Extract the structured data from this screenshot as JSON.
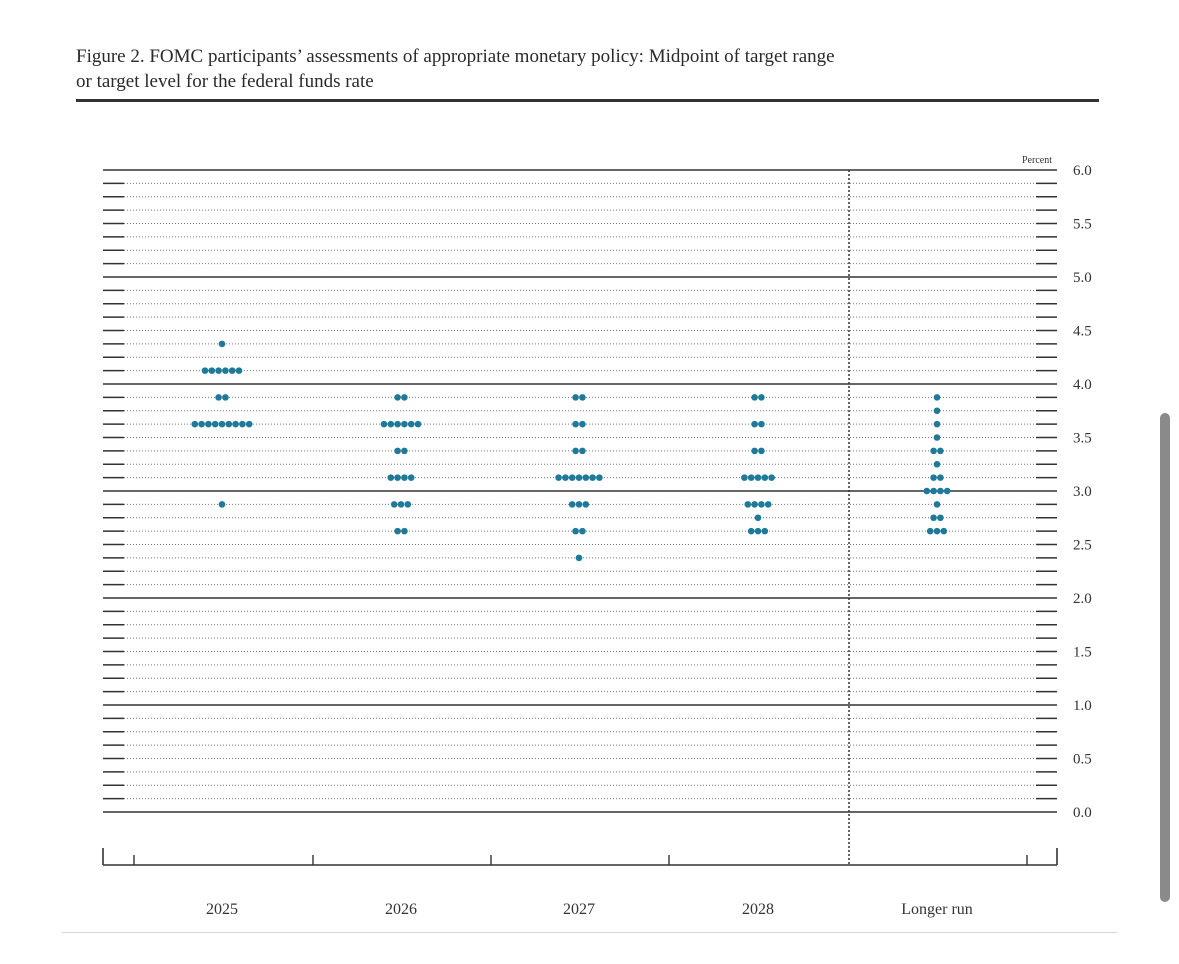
{
  "figure": {
    "title_line1": "Figure 2. FOMC participants’ assessments of appropriate monetary policy: Midpoint of target range",
    "title_line2": "or target level for the federal funds rate"
  },
  "chart_data": {
    "type": "scatter",
    "subtype": "dot plot",
    "unit_label": "Percent",
    "categories": [
      "2025",
      "2026",
      "2027",
      "2028",
      "Longer run"
    ],
    "ylim": [
      0.0,
      6.0
    ],
    "y_ticks": [
      "6.0",
      "5.5",
      "5.0",
      "4.5",
      "4.0",
      "3.5",
      "3.0",
      "2.5",
      "2.0",
      "1.5",
      "1.0",
      "0.5",
      "0.0"
    ],
    "grid": "dotted lines every 0.125; solid lines every 1.0",
    "separator_before": "Longer run",
    "dot_color": "#1f7a9a",
    "series": [
      {
        "category": "2025",
        "points": [
          {
            "y": 4.375,
            "count": 1
          },
          {
            "y": 4.125,
            "count": 6
          },
          {
            "y": 3.875,
            "count": 2
          },
          {
            "y": 3.625,
            "count": 9
          },
          {
            "y": 2.875,
            "count": 1
          }
        ]
      },
      {
        "category": "2026",
        "points": [
          {
            "y": 3.875,
            "count": 2
          },
          {
            "y": 3.625,
            "count": 6
          },
          {
            "y": 3.375,
            "count": 2
          },
          {
            "y": 3.125,
            "count": 4
          },
          {
            "y": 2.875,
            "count": 3
          },
          {
            "y": 2.625,
            "count": 2
          }
        ]
      },
      {
        "category": "2027",
        "points": [
          {
            "y": 3.875,
            "count": 2
          },
          {
            "y": 3.625,
            "count": 2
          },
          {
            "y": 3.375,
            "count": 2
          },
          {
            "y": 3.125,
            "count": 7
          },
          {
            "y": 2.875,
            "count": 3
          },
          {
            "y": 2.625,
            "count": 2
          },
          {
            "y": 2.375,
            "count": 1
          }
        ]
      },
      {
        "category": "2028",
        "points": [
          {
            "y": 3.875,
            "count": 2
          },
          {
            "y": 3.625,
            "count": 2
          },
          {
            "y": 3.375,
            "count": 2
          },
          {
            "y": 3.125,
            "count": 5
          },
          {
            "y": 2.875,
            "count": 4
          },
          {
            "y": 2.75,
            "count": 1
          },
          {
            "y": 2.625,
            "count": 3
          }
        ]
      },
      {
        "category": "Longer run",
        "points": [
          {
            "y": 3.875,
            "count": 1
          },
          {
            "y": 3.75,
            "count": 1
          },
          {
            "y": 3.625,
            "count": 1
          },
          {
            "y": 3.5,
            "count": 1
          },
          {
            "y": 3.375,
            "count": 2
          },
          {
            "y": 3.25,
            "count": 1
          },
          {
            "y": 3.125,
            "count": 2
          },
          {
            "y": 3.0,
            "count": 4
          },
          {
            "y": 2.875,
            "count": 1
          },
          {
            "y": 2.75,
            "count": 2
          },
          {
            "y": 2.625,
            "count": 3
          }
        ]
      }
    ]
  }
}
